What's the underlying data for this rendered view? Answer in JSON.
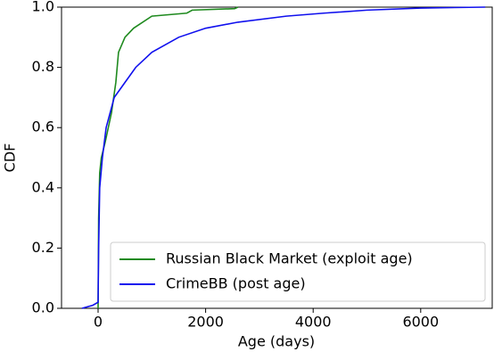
{
  "chart_data": {
    "type": "line",
    "xlabel": "Age (days)",
    "ylabel": "CDF",
    "xlim": [
      -680,
      7330
    ],
    "ylim": [
      0,
      1
    ],
    "xticks": [
      0,
      2000,
      4000,
      6000
    ],
    "yticks": [
      {
        "value": 0,
        "label": "0.0"
      },
      0.2,
      0.4,
      0.6,
      0.8,
      {
        "value": 1,
        "label": "1.0"
      }
    ],
    "legend": "lower right",
    "series": [
      {
        "name": "Russian Black Market (exploit age)",
        "color": "#1f8a1f",
        "x": [
          0,
          10,
          30,
          60,
          130,
          250,
          330,
          380,
          500,
          660,
          1000,
          1650,
          1750,
          2540,
          2600
        ],
        "values": [
          0,
          0.3,
          0.45,
          0.5,
          0.55,
          0.65,
          0.75,
          0.85,
          0.9,
          0.93,
          0.97,
          0.98,
          0.99,
          0.995,
          1
        ]
      },
      {
        "name": "CrimeBB (post age)",
        "color": "#1010ee",
        "x": [
          -300,
          -100,
          0,
          10,
          30,
          80,
          150,
          300,
          500,
          700,
          1000,
          1500,
          2000,
          2600,
          3500,
          4200,
          5000,
          6000,
          7200
        ],
        "values": [
          0,
          0.01,
          0.02,
          0.2,
          0.4,
          0.5,
          0.6,
          0.7,
          0.75,
          0.8,
          0.85,
          0.9,
          0.93,
          0.95,
          0.97,
          0.98,
          0.99,
          0.997,
          1
        ]
      }
    ]
  }
}
